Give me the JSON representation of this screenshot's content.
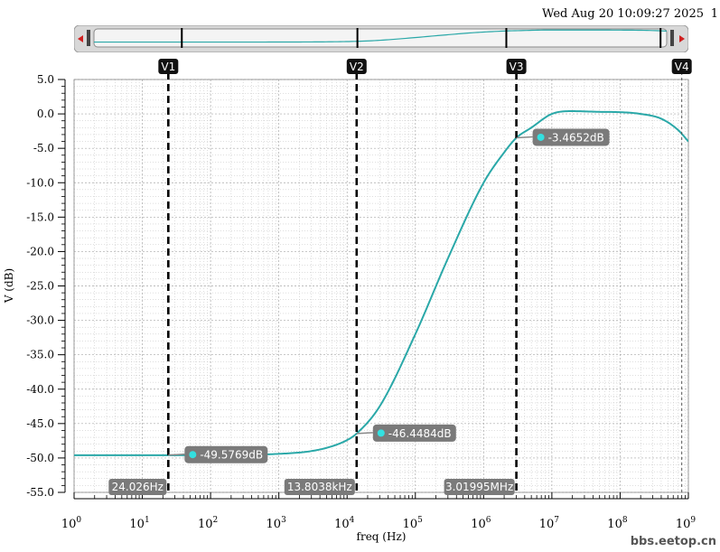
{
  "header": {
    "timestamp": "Wed Aug 20 10:09:27 2025",
    "page_number": "1"
  },
  "watermark": "bbs.eetop.cn",
  "colors": {
    "trace": "#2aa8a8",
    "marker_dot": "#33e0e0",
    "label_bg": "#7a7a7a",
    "grid": "#bdbdbd"
  },
  "chart_data": {
    "type": "line",
    "xscale": "log",
    "xlim": [
      1,
      1000000000
    ],
    "ylim": [
      -55,
      5
    ],
    "xlabel": "freq (Hz)",
    "ylabel": "V (dB)",
    "x_ticks": [
      {
        "value": 1,
        "base": "10",
        "exp": "0"
      },
      {
        "value": 10,
        "base": "10",
        "exp": "1"
      },
      {
        "value": 100,
        "base": "10",
        "exp": "2"
      },
      {
        "value": 1000,
        "base": "10",
        "exp": "3"
      },
      {
        "value": 10000,
        "base": "10",
        "exp": "4"
      },
      {
        "value": 100000,
        "base": "10",
        "exp": "5"
      },
      {
        "value": 1000000,
        "base": "10",
        "exp": "6"
      },
      {
        "value": 10000000,
        "base": "10",
        "exp": "7"
      },
      {
        "value": 100000000,
        "base": "10",
        "exp": "8"
      },
      {
        "value": 1000000000,
        "base": "10",
        "exp": "9"
      }
    ],
    "y_ticks": [
      "5.0",
      "0.0",
      "-5.0",
      "-10.0",
      "-15.0",
      "-20.0",
      "-25.0",
      "-30.0",
      "-35.0",
      "-40.0",
      "-45.0",
      "-50.0",
      "-55.0"
    ],
    "grid": true,
    "series": [
      {
        "x": [
          1,
          10,
          100,
          1000,
          3000,
          6000,
          10000,
          13803.8,
          30000,
          100000,
          300000,
          1000000,
          2000000,
          3019950,
          5000000,
          10000000,
          20000000,
          50000000,
          100000000,
          200000000,
          400000000,
          700000000,
          1000000000
        ],
        "y": [
          -49.6,
          -49.6,
          -49.59,
          -49.4,
          -49.0,
          -48.3,
          -47.4,
          -46.45,
          -42.5,
          -32.0,
          -21.0,
          -10.0,
          -5.6,
          -3.47,
          -2.0,
          0.0,
          0.4,
          0.3,
          0.25,
          0.0,
          -0.7,
          -2.3,
          -4.0
        ]
      }
    ],
    "markers": [
      {
        "name": "V1",
        "x": 24.026,
        "x_label": "24.026Hz",
        "y": -49.5769,
        "value_label": "-49.5769dB",
        "style": "dashed-thick"
      },
      {
        "name": "V2",
        "x": 13803.8,
        "x_label": "13.8038kHz",
        "y": -46.4484,
        "value_label": "-46.4484dB",
        "style": "dashed-thick"
      },
      {
        "name": "V3",
        "x": 3019950,
        "x_label": "3.01995MHz",
        "y": -3.4652,
        "value_label": "-3.4652dB",
        "style": "dashed-thick"
      },
      {
        "name": "V4",
        "x": 800000000,
        "style": "dashed-thin"
      }
    ],
    "navigator": {
      "thumb_positions": [
        24.026,
        13803.8,
        3019950,
        800000000
      ]
    }
  }
}
